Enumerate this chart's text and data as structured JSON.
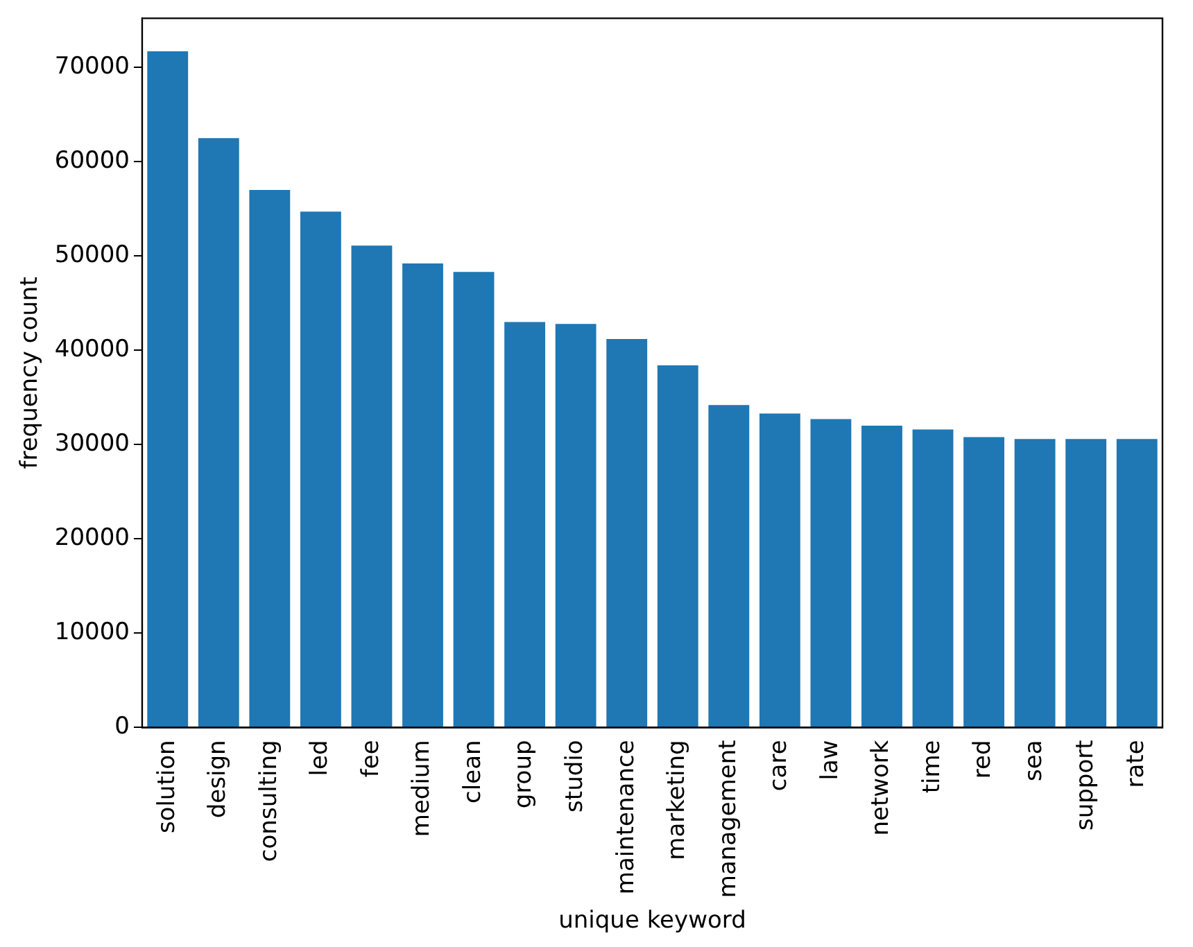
{
  "chart_data": {
    "type": "bar",
    "xlabel": "unique keyword",
    "ylabel": "frequency count",
    "categories": [
      "solution",
      "design",
      "consulting",
      "led",
      "fee",
      "medium",
      "clean",
      "group",
      "studio",
      "maintenance",
      "marketing",
      "management",
      "care",
      "law",
      "network",
      "time",
      "red",
      "sea",
      "support",
      "rate"
    ],
    "values": [
      71700,
      62500,
      57000,
      54700,
      51100,
      49200,
      48300,
      43000,
      42800,
      41200,
      38400,
      34200,
      33300,
      32700,
      32000,
      31600,
      30800,
      30600,
      30600,
      30600
    ],
    "color": "#1f77b4",
    "ylim": [
      0,
      75200
    ],
    "yticks": [
      0,
      10000,
      20000,
      30000,
      40000,
      50000,
      60000,
      70000
    ],
    "grid": false,
    "legend": false
  }
}
